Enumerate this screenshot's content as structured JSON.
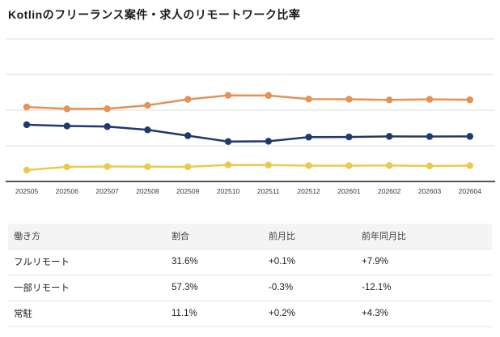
{
  "page": {
    "title": "Kotlinのフリーランス案件・求人のリモートワーク比率"
  },
  "chart_data": {
    "type": "line",
    "title": "Kotlinのフリーランス案件・求人のリモートワーク比率",
    "xlabel": "",
    "ylabel": "",
    "categories": [
      "202505",
      "202506",
      "202507",
      "202508",
      "202509",
      "202510",
      "202511",
      "202512",
      "202601",
      "202602",
      "202603",
      "202604"
    ],
    "series": [
      {
        "key": "partial-remote",
        "name": "一部リモート",
        "color": "#e39355",
        "values": [
          52.2,
          50.9,
          51.0,
          53.4,
          57.6,
          60.4,
          60.3,
          57.8,
          57.7,
          57.2,
          57.6,
          57.3
        ]
      },
      {
        "key": "full-remote",
        "name": "フルリモート",
        "color": "#1f3a6e",
        "values": [
          39.8,
          38.9,
          38.5,
          36.2,
          32.1,
          28.0,
          28.2,
          31.1,
          31.2,
          31.6,
          31.5,
          31.6
        ]
      },
      {
        "key": "onsite",
        "name": "常駐",
        "color": "#edc94b",
        "values": [
          8.0,
          10.2,
          10.5,
          10.4,
          10.3,
          11.6,
          11.5,
          11.1,
          11.1,
          11.2,
          10.9,
          11.1
        ]
      }
    ],
    "ylim": [
      0,
      100
    ],
    "ytick_step": 25,
    "grid": true,
    "legend": "none",
    "grid_color": "#dcdcdc",
    "axis_color": "#1a1a1a",
    "tick_label_color": "#3a3a3a"
  },
  "table": {
    "headers": [
      "働き方",
      "割合",
      "前月比",
      "前年同月比"
    ],
    "rows": [
      {
        "label": "フルリモート",
        "share": "31.6%",
        "mom": "+0.1%",
        "yoy": "+7.9%"
      },
      {
        "label": "一部リモート",
        "share": "57.3%",
        "mom": "-0.3%",
        "yoy": "-12.1%"
      },
      {
        "label": "常駐",
        "share": "11.1%",
        "mom": "+0.2%",
        "yoy": "+4.3%"
      }
    ]
  }
}
